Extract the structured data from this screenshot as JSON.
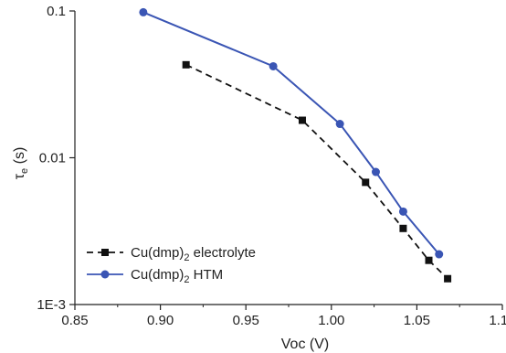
{
  "chart_data": {
    "type": "line",
    "xlabel": "Voc (V)",
    "ylabel": {
      "main": "τ",
      "sub": "e",
      "rest": " (s)"
    },
    "xlim": [
      0.85,
      1.1
    ],
    "ylim": [
      0.001,
      0.1
    ],
    "yscale": "log",
    "x_ticks": [
      "0.85",
      "0.90",
      "0.95",
      "1.00",
      "1.05",
      "1.10"
    ],
    "y_ticks": [
      "1E-3",
      "0.01",
      "0.1"
    ],
    "grid": false,
    "legend_position": "bottom-left",
    "series": [
      {
        "name": "Cu(dmp)2 electrolyte",
        "legend": {
          "prefix": "Cu(dmp)",
          "sub": "2",
          "suffix": " electrolyte"
        },
        "style": "dashed",
        "marker": "square",
        "color": "#111111",
        "x": [
          0.915,
          0.983,
          1.02,
          1.042,
          1.057,
          1.068
        ],
        "y": [
          0.043,
          0.018,
          0.0068,
          0.0033,
          0.002,
          0.0015
        ]
      },
      {
        "name": "Cu(dmp)2 HTM",
        "legend": {
          "prefix": "Cu(dmp)",
          "sub": "2",
          "suffix": " HTM"
        },
        "style": "solid",
        "marker": "circle",
        "color": "#3a55b4",
        "x": [
          0.89,
          0.966,
          1.005,
          1.026,
          1.042,
          1.063
        ],
        "y": [
          0.098,
          0.042,
          0.017,
          0.008,
          0.0043,
          0.0022
        ]
      }
    ]
  }
}
